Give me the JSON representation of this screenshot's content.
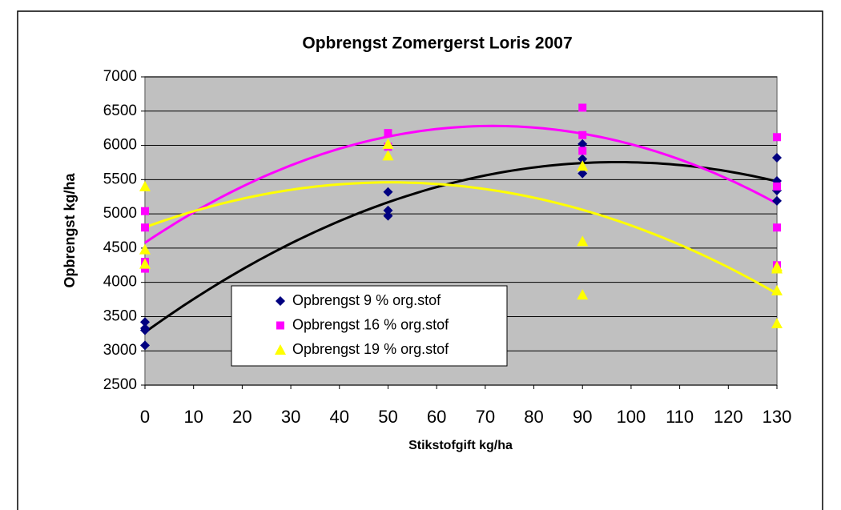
{
  "chart_data": {
    "type": "scatter",
    "title": "Opbrengst Zomergerst Loris 2007",
    "x_label": "Stikstofgift kg/ha",
    "y_label": "Opbrengst kg/ha",
    "xlim": [
      0,
      130
    ],
    "xticks": [
      0,
      10,
      20,
      30,
      40,
      50,
      60,
      70,
      80,
      90,
      100,
      110,
      120,
      130
    ],
    "ylim": [
      2500,
      7000
    ],
    "yticks": [
      2500,
      3000,
      3500,
      4000,
      4500,
      5000,
      5500,
      6000,
      6500,
      7000
    ],
    "grid": true,
    "trendline": "polynomial",
    "series": [
      {
        "name": "Opbrengst 9 % org.stof",
        "color": "#000080",
        "trendline_color": "#000000",
        "marker": "diamond",
        "x": [
          0,
          0,
          0,
          0,
          50,
          50,
          50,
          90,
          90,
          90,
          130,
          130,
          130,
          130
        ],
        "values": [
          3420,
          3330,
          3300,
          3080,
          5320,
          5050,
          4970,
          6020,
          5800,
          5590,
          5820,
          5480,
          5340,
          5190
        ]
      },
      {
        "name": "Opbrengst 16 % org.stof",
        "color": "#ff00ff",
        "trendline_color": "#ff00ff",
        "marker": "square",
        "x": [
          0,
          0,
          0,
          0,
          50,
          50,
          90,
          90,
          90,
          130,
          130,
          130,
          130
        ],
        "values": [
          5040,
          4800,
          4300,
          4200,
          6180,
          5980,
          6550,
          6150,
          5920,
          6120,
          5400,
          4800,
          4250
        ]
      },
      {
        "name": "Opbrengst 19 % org.stof",
        "color": "#ffff00",
        "trendline_color": "#ffff00",
        "marker": "triangle",
        "x": [
          0,
          0,
          0,
          50,
          50,
          90,
          90,
          90,
          130,
          130,
          130,
          130
        ],
        "values": [
          5400,
          4480,
          4270,
          6020,
          5850,
          5700,
          4600,
          3820,
          4230,
          4200,
          3880,
          3400
        ]
      }
    ]
  }
}
